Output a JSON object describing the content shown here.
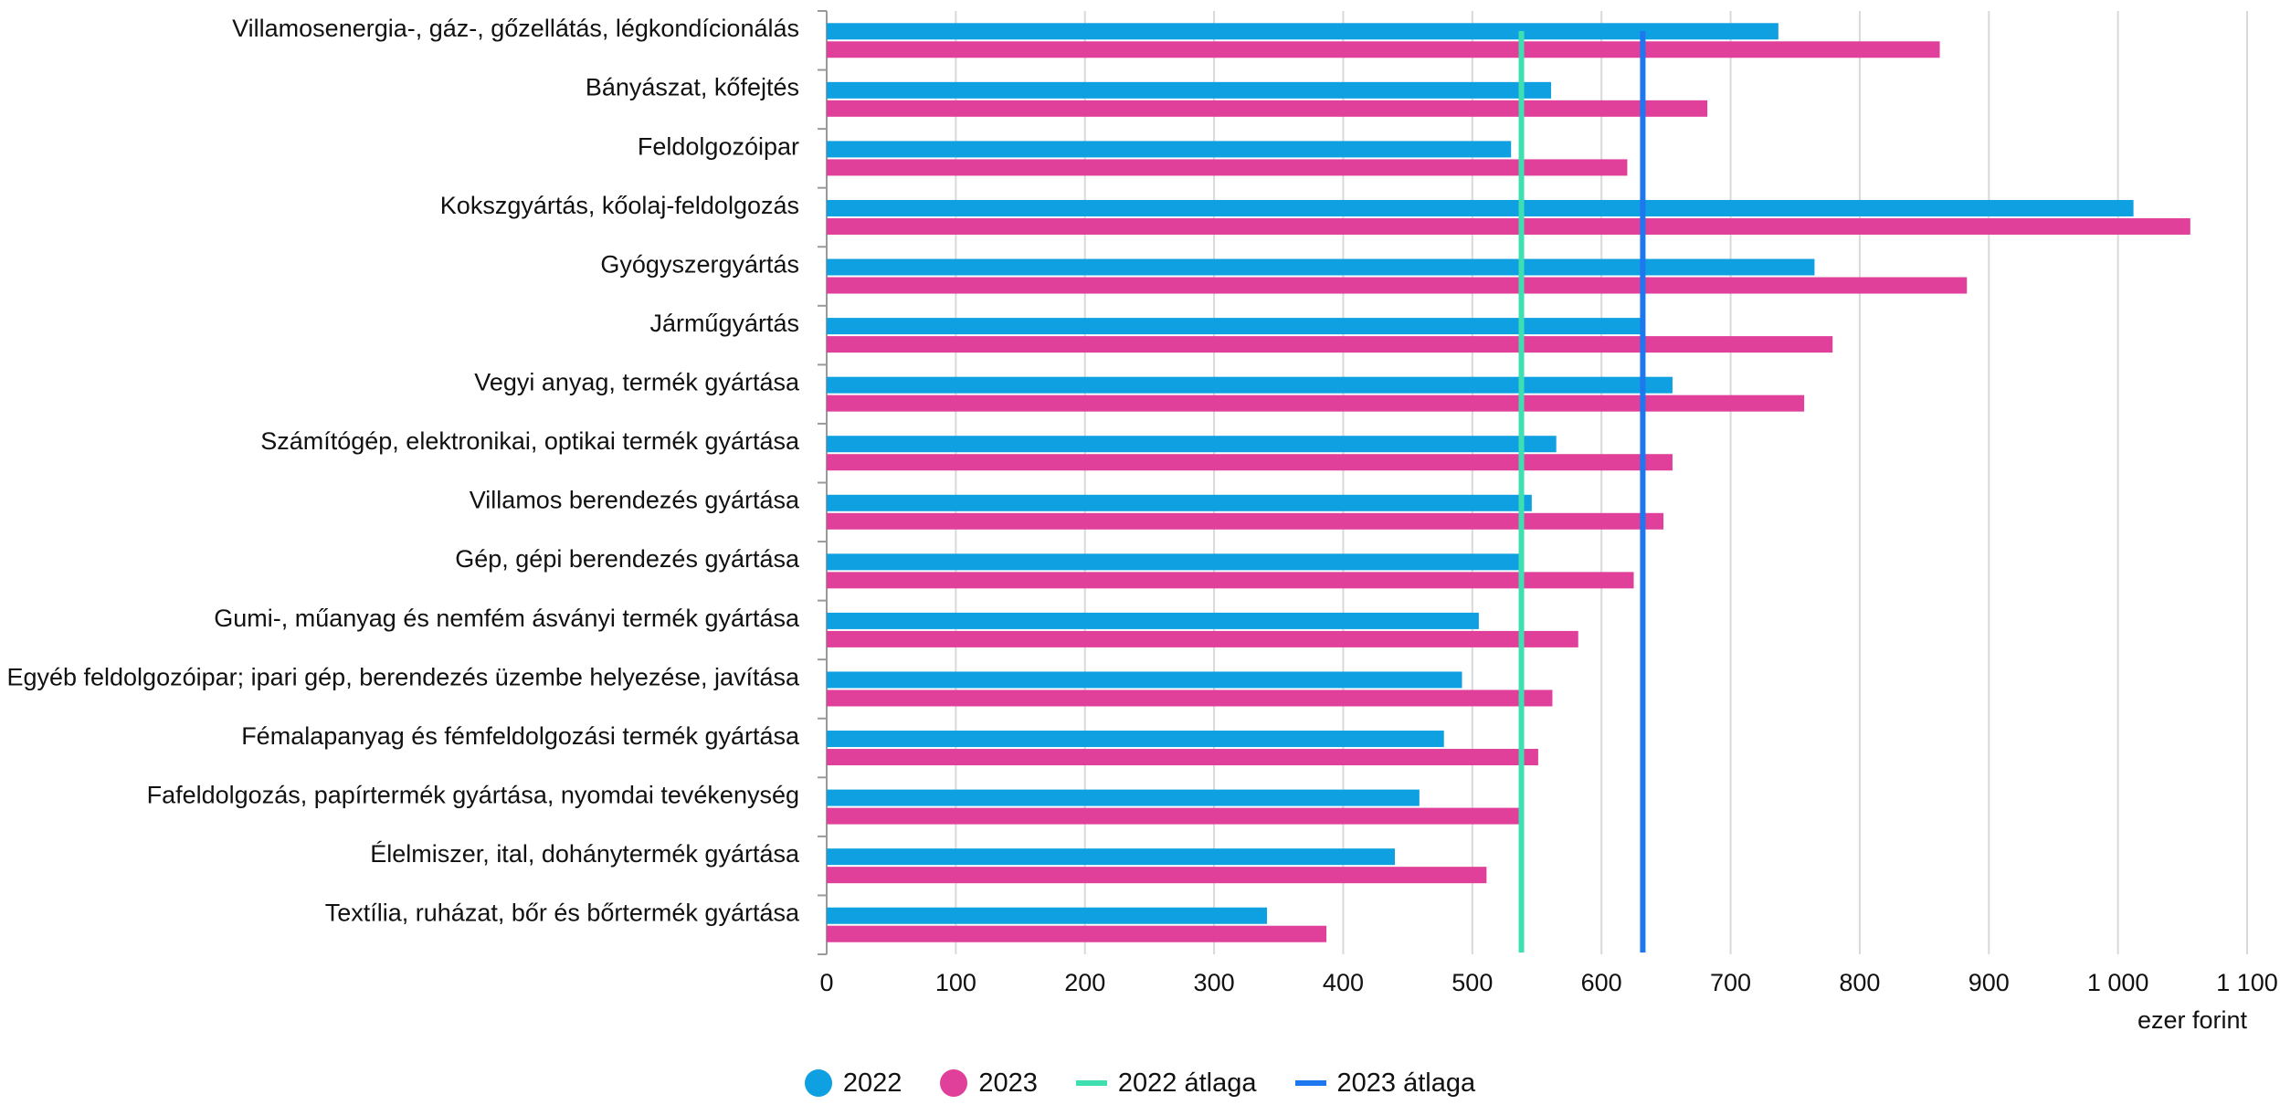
{
  "chart_data": {
    "type": "bar",
    "orientation": "horizontal",
    "categories": [
      "Villamosenergia-, gáz-, gőzellátás, légkondícionálás",
      "Bányászat, kőfejtés",
      "Feldolgozóipar",
      "Kokszgyártás, kőolaj-feldolgozás",
      "Gyógyszergyártás",
      "Járműgyártás",
      "Vegyi anyag, termék gyártása",
      "Számítógép, elektronikai, optikai termék gyártása",
      "Villamos berendezés gyártása",
      "Gép, gépi berendezés gyártása",
      "Gumi-, műanyag és nemfém ásványi termék gyártása",
      "Egyéb feldolgozóipar; ipari gép, berendezés üzembe helyezése, javítása",
      "Fémalapanyag és fémfeldolgozási termék gyártása",
      "Fafeldolgozás, papírtermék gyártása, nyomdai tevékenység",
      "Élelmiszer, ital, dohánytermék gyártása",
      "Textília, ruházat, bőr és bőrtermék gyártása"
    ],
    "series": [
      {
        "name": "2022",
        "color": "#0ea0e1",
        "values": [
          737,
          561,
          530,
          1012,
          765,
          631,
          655,
          565,
          546,
          538,
          505,
          492,
          478,
          459,
          440,
          341
        ]
      },
      {
        "name": "2023",
        "color": "#e0409a",
        "values": [
          862,
          682,
          620,
          1056,
          883,
          779,
          757,
          655,
          648,
          625,
          582,
          562,
          551,
          536,
          511,
          387
        ]
      }
    ],
    "reference_lines": [
      {
        "name": "2022 átlaga",
        "value": 538,
        "color": "#3ee0b2"
      },
      {
        "name": "2023 átlaga",
        "value": 632,
        "color": "#1d78ef"
      }
    ],
    "xlim": [
      0,
      1100
    ],
    "xticks": [
      0,
      100,
      200,
      300,
      400,
      500,
      600,
      700,
      800,
      900,
      1000,
      1100
    ],
    "xtick_labels": [
      "0",
      "100",
      "200",
      "300",
      "400",
      "500",
      "600",
      "700",
      "800",
      "900",
      "1 000",
      "1 100"
    ],
    "xlabel": "ezer forint",
    "grid": "vertical",
    "legend_position": "bottom-center"
  }
}
